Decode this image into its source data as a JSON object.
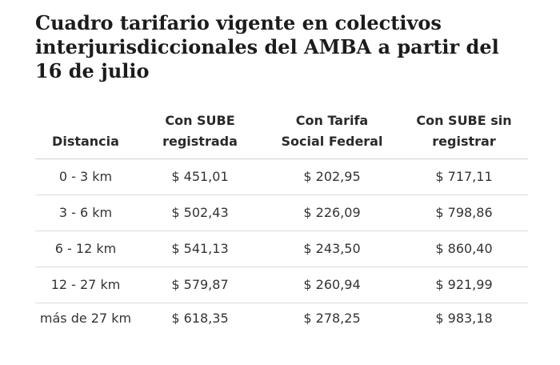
{
  "title": "Cuadro tarifario vigente en colectivos interjurisdiccionales del AMBA a partir del 16 de julio",
  "table": {
    "headers": [
      [
        "Distancia"
      ],
      [
        "Con SUBE",
        "registrada"
      ],
      [
        "Con Tarifa",
        "Social Federal"
      ],
      [
        "Con SUBE sin",
        "registrar"
      ]
    ],
    "rows": [
      [
        "0 - 3 km",
        "$ 451,01",
        "$ 202,95",
        "$ 717,11"
      ],
      [
        "3 - 6 km",
        "$ 502,43",
        "$ 226,09",
        "$ 798,86"
      ],
      [
        "6 - 12 km",
        "$ 541,13",
        "$ 243,50",
        "$ 860,40"
      ],
      [
        "12 - 27 km",
        "$ 579,87",
        "$ 260,94",
        "$ 921,99"
      ],
      [
        "más de 27 km",
        "$ 618,35",
        "$ 278,25",
        "$ 983,18"
      ]
    ]
  }
}
